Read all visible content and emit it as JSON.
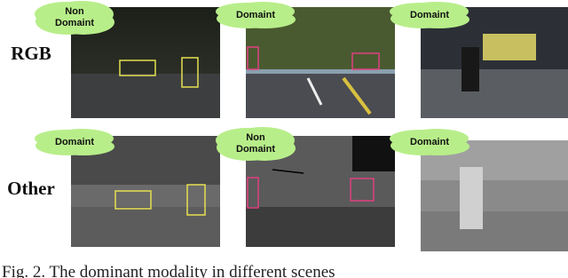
{
  "row_labels": [
    "RGB",
    "Other"
  ],
  "panels": [
    [
      {
        "tag": [
          "Non",
          "Domaint"
        ]
      },
      {
        "tag": [
          "Domaint"
        ]
      },
      {
        "tag": [
          "Domaint"
        ]
      }
    ],
    [
      {
        "tag": [
          "Domaint"
        ]
      },
      {
        "tag": [
          "Non",
          "Domaint"
        ]
      },
      {
        "tag": [
          "Domaint"
        ]
      }
    ]
  ],
  "caption": "Fig. 2.  The  dominant  modality  in  different  scenes"
}
